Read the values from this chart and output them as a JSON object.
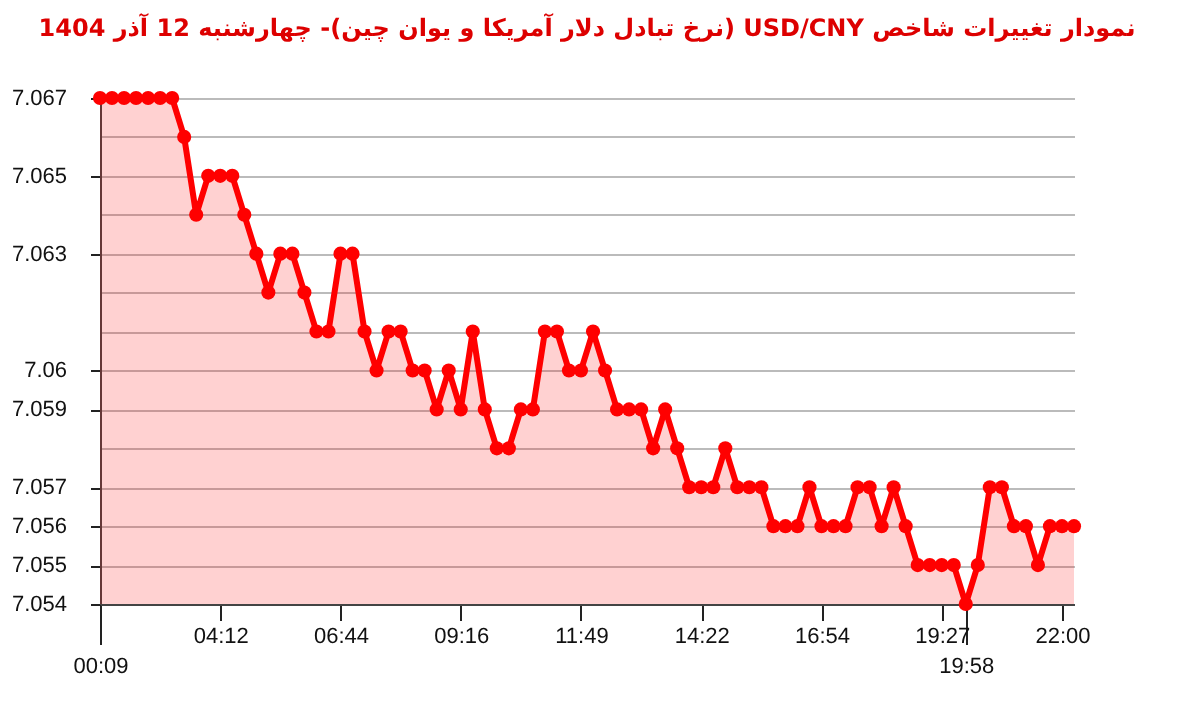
{
  "chart_data": {
    "type": "area",
    "title": "نمودار تغییرات شاخص USD/CNY (نرخ تبادل دلار آمریکا و یوان چین)- چهارشنبه  12 آذر 1404",
    "categories": [
      "00:09",
      null,
      null,
      null,
      null,
      null,
      null,
      null,
      null,
      null,
      "04:12",
      null,
      null,
      null,
      null,
      null,
      null,
      null,
      null,
      null,
      "06:44",
      null,
      null,
      null,
      null,
      null,
      null,
      null,
      null,
      null,
      "09:16",
      null,
      null,
      null,
      null,
      null,
      null,
      null,
      null,
      null,
      "11:49",
      null,
      null,
      null,
      null,
      null,
      null,
      null,
      null,
      null,
      "14:22",
      null,
      null,
      null,
      null,
      null,
      null,
      null,
      null,
      null,
      "16:54",
      null,
      null,
      null,
      null,
      null,
      null,
      null,
      null,
      null,
      "19:27",
      null,
      "19:58",
      null,
      null,
      null,
      null,
      null,
      null,
      null,
      "22:00",
      null
    ],
    "series": [
      {
        "color": "#ff0000",
        "values": [
          7.067,
          7.067,
          7.067,
          7.067,
          7.067,
          7.067,
          7.067,
          7.066,
          7.064,
          7.065,
          7.065,
          7.065,
          7.064,
          7.063,
          7.062,
          7.063,
          7.063,
          7.062,
          7.061,
          7.061,
          7.063,
          7.063,
          7.061,
          7.06,
          7.061,
          7.061,
          7.06,
          7.06,
          7.059,
          7.06,
          7.059,
          7.061,
          7.059,
          7.058,
          7.058,
          7.059,
          7.059,
          7.061,
          7.061,
          7.06,
          7.06,
          7.061,
          7.06,
          7.059,
          7.059,
          7.059,
          7.058,
          7.059,
          7.058,
          7.057,
          7.057,
          7.057,
          7.058,
          7.057,
          7.057,
          7.057,
          7.056,
          7.056,
          7.056,
          7.057,
          7.056,
          7.056,
          7.056,
          7.057,
          7.057,
          7.056,
          7.057,
          7.056,
          7.055,
          7.055,
          7.055,
          7.055,
          7.054,
          7.055,
          7.057,
          7.057,
          7.056,
          7.056,
          7.055,
          7.056,
          7.056,
          7.056
        ]
      }
    ],
    "ylim": [
      7.054,
      7.067
    ],
    "yticks": [
      7.054,
      7.055,
      7.056,
      7.057,
      {
        "value": 7.058,
        "label": null
      },
      7.059,
      {
        "value": 7.06,
        "label": "7.06"
      },
      {
        "value": 7.061,
        "label": null
      },
      {
        "value": 7.062,
        "label": null
      },
      7.063,
      {
        "value": 7.064,
        "label": null
      },
      7.065,
      {
        "value": 7.066,
        "label": null
      },
      7.067
    ],
    "grid": "y",
    "marker": "circle",
    "legend": false
  }
}
